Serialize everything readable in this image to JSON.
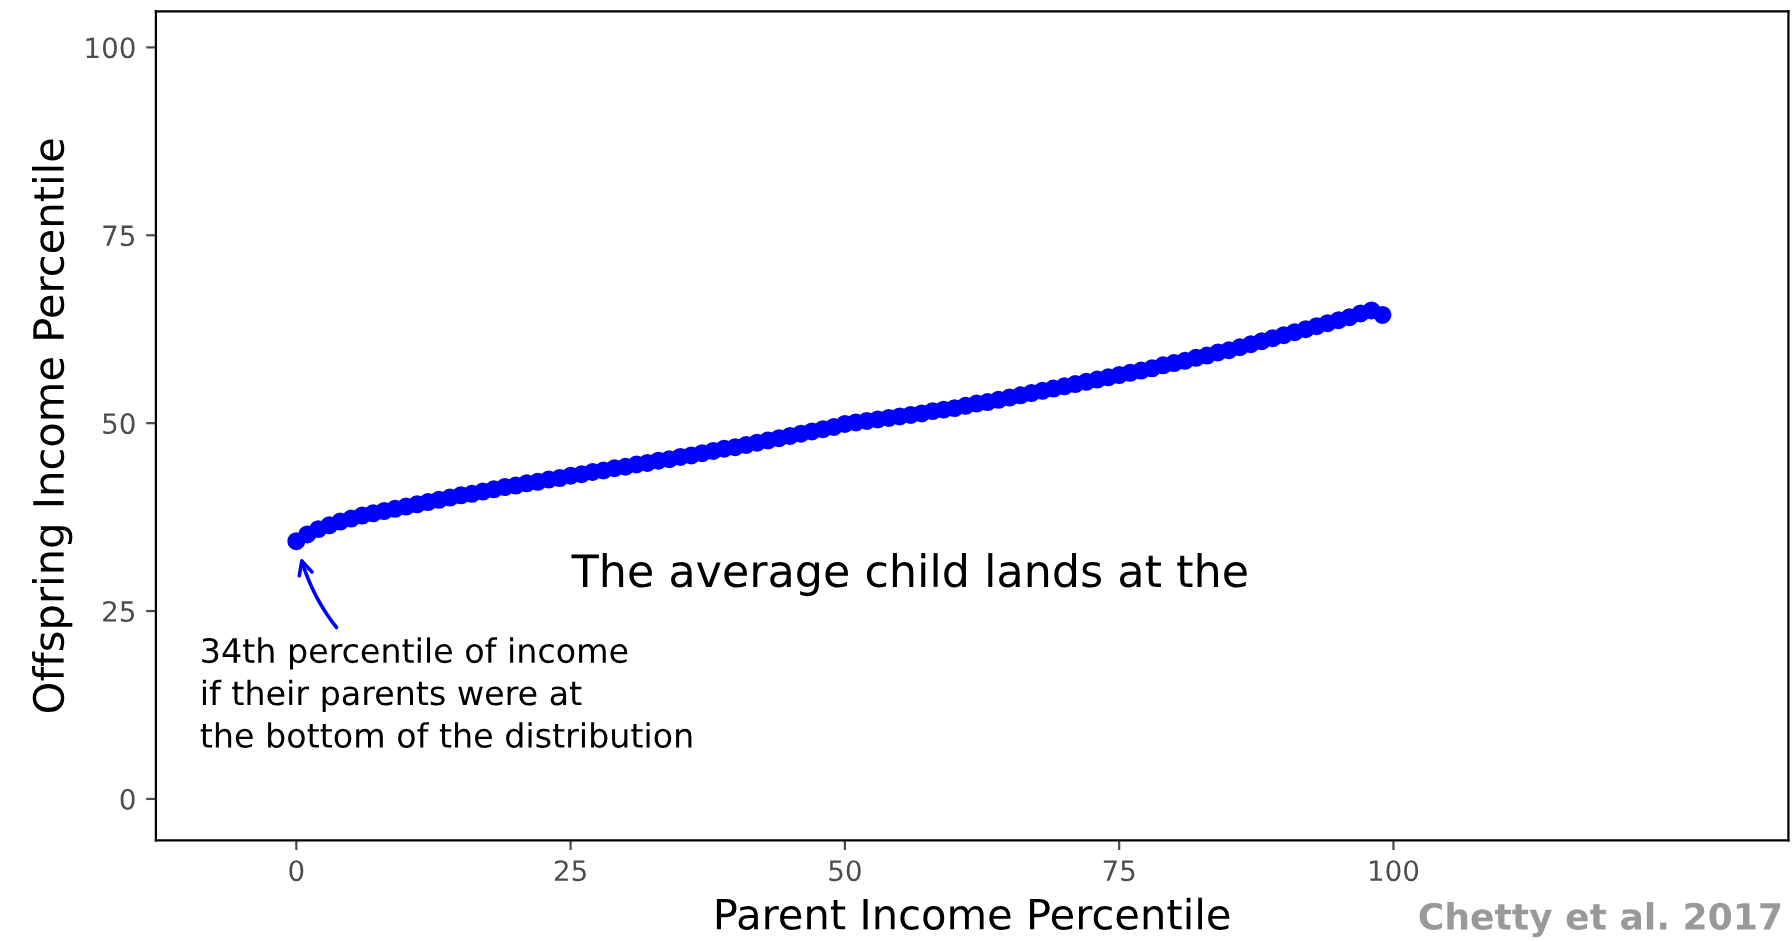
{
  "chart_data": {
    "type": "scatter",
    "xlabel": "Parent Income Percentile",
    "ylabel": "Offspring Income Percentile",
    "x": [
      0,
      1,
      2,
      3,
      4,
      5,
      6,
      7,
      8,
      9,
      10,
      11,
      12,
      13,
      14,
      15,
      16,
      17,
      18,
      19,
      20,
      21,
      22,
      23,
      24,
      25,
      26,
      27,
      28,
      29,
      30,
      31,
      32,
      33,
      34,
      35,
      36,
      37,
      38,
      39,
      40,
      41,
      42,
      43,
      44,
      45,
      46,
      47,
      48,
      49,
      50,
      51,
      52,
      53,
      54,
      55,
      56,
      57,
      58,
      59,
      60,
      61,
      62,
      63,
      64,
      65,
      66,
      67,
      68,
      69,
      70,
      71,
      72,
      73,
      74,
      75,
      76,
      77,
      78,
      79,
      80,
      81,
      82,
      83,
      84,
      85,
      86,
      87,
      88,
      89,
      90,
      91,
      92,
      93,
      94,
      95,
      96,
      97,
      98,
      99
    ],
    "series": [
      {
        "color": "#0000ff",
        "values": [
          34.3,
          35.2,
          35.9,
          36.4,
          36.9,
          37.3,
          37.7,
          38.0,
          38.3,
          38.6,
          38.9,
          39.2,
          39.5,
          39.8,
          40.1,
          40.4,
          40.6,
          40.9,
          41.2,
          41.5,
          41.7,
          42.0,
          42.2,
          42.5,
          42.7,
          43.0,
          43.2,
          43.5,
          43.7,
          44.0,
          44.2,
          44.5,
          44.7,
          45.0,
          45.2,
          45.5,
          45.7,
          46.0,
          46.3,
          46.6,
          46.8,
          47.1,
          47.4,
          47.7,
          48.0,
          48.3,
          48.6,
          48.9,
          49.2,
          49.5,
          49.9,
          50.1,
          50.3,
          50.5,
          50.7,
          50.9,
          51.1,
          51.3,
          51.6,
          51.8,
          52.0,
          52.3,
          52.6,
          52.8,
          53.1,
          53.4,
          53.7,
          54.0,
          54.3,
          54.6,
          54.9,
          55.2,
          55.5,
          55.8,
          56.1,
          56.4,
          56.7,
          57.0,
          57.3,
          57.7,
          58.0,
          58.3,
          58.7,
          59.0,
          59.4,
          59.7,
          60.1,
          60.5,
          60.9,
          61.3,
          61.7,
          62.1,
          62.5,
          62.9,
          63.3,
          63.7,
          64.1,
          64.6,
          65.0,
          64.4
        ]
      }
    ],
    "xlim": [
      -12.8,
      136
    ],
    "ylim": [
      -5.5,
      104.8
    ],
    "xticks": [
      0,
      25,
      50,
      75,
      100
    ],
    "yticks": [
      0,
      25,
      50,
      75,
      100
    ],
    "grid": false,
    "legend": false,
    "marker": "circle",
    "annotations": [
      {
        "text": "34th percentile of income\nif their parents were at\nthe bottom of the distribution",
        "x": 0,
        "y": 34.3
      },
      "The average child lands at the",
      "Chetty et al. 2017"
    ]
  }
}
